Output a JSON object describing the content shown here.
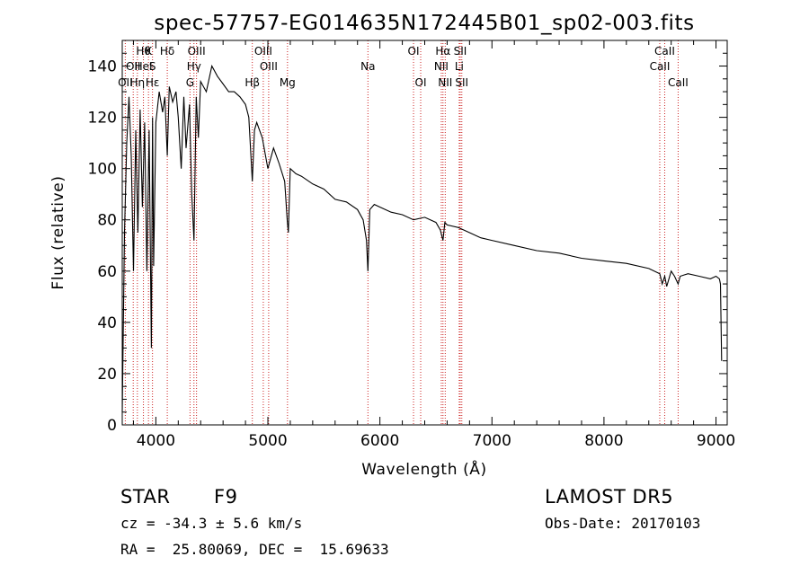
{
  "chart_data": {
    "type": "line",
    "title": "spec-57757-EG014635N172445B01_sp02-003.fits",
    "xlabel": "Wavelength (Å)",
    "ylabel": "Flux (relative)",
    "xlim": [
      3700,
      9100
    ],
    "ylim": [
      0,
      150
    ],
    "xticks": [
      4000,
      5000,
      6000,
      7000,
      8000,
      9000
    ],
    "yticks": [
      0,
      20,
      40,
      60,
      80,
      100,
      120,
      140
    ],
    "grid": false,
    "series": [
      {
        "color": "#000000",
        "x": [
          3700,
          3720,
          3740,
          3760,
          3780,
          3800,
          3820,
          3840,
          3860,
          3880,
          3900,
          3920,
          3940,
          3960,
          3970,
          3980,
          4000,
          4030,
          4060,
          4080,
          4102,
          4120,
          4150,
          4180,
          4200,
          4226,
          4250,
          4270,
          4300,
          4320,
          4340,
          4360,
          4380,
          4400,
          4450,
          4500,
          4550,
          4600,
          4650,
          4700,
          4750,
          4800,
          4830,
          4861,
          4880,
          4900,
          4950,
          5000,
          5050,
          5100,
          5150,
          5172,
          5183,
          5200,
          5250,
          5300,
          5400,
          5500,
          5600,
          5700,
          5800,
          5850,
          5880,
          5893,
          5910,
          5950,
          6000,
          6100,
          6200,
          6300,
          6400,
          6500,
          6540,
          6563,
          6580,
          6600,
          6700,
          6800,
          6900,
          7000,
          7200,
          7400,
          7600,
          7800,
          8000,
          8200,
          8400,
          8498,
          8520,
          8542,
          8560,
          8600,
          8630,
          8662,
          8680,
          8750,
          8850,
          8950,
          9000,
          9030,
          9040,
          9050
        ],
        "y": [
          5,
          75,
          110,
          128,
          105,
          60,
          115,
          75,
          123,
          85,
          118,
          60,
          115,
          30,
          120,
          62,
          118,
          130,
          122,
          128,
          105,
          132,
          126,
          130,
          120,
          100,
          128,
          108,
          125,
          90,
          72,
          128,
          112,
          134,
          130,
          140,
          136,
          133,
          130,
          130,
          128,
          125,
          120,
          95,
          115,
          118,
          112,
          100,
          108,
          102,
          95,
          80,
          75,
          100,
          98,
          97,
          94,
          92,
          88,
          87,
          84,
          80,
          72,
          60,
          84,
          86,
          85,
          83,
          82,
          80,
          81,
          79,
          76,
          72,
          79,
          78,
          77,
          75,
          73,
          72,
          70,
          68,
          67,
          65,
          64,
          63,
          61,
          59,
          55,
          58,
          54,
          60,
          58,
          55,
          58,
          59,
          58,
          57,
          58,
          57,
          55,
          25
        ]
      }
    ],
    "line_labels": [
      {
        "wavelength": 3889,
        "label": "Hθ",
        "row": 1
      },
      {
        "wavelength": 3934,
        "label": "K",
        "row": 1
      },
      {
        "wavelength": 4102,
        "label": "Hδ",
        "row": 1
      },
      {
        "wavelength": 4363,
        "label": "OIII",
        "row": 1
      },
      {
        "wavelength": 4959,
        "label": "OIII",
        "row": 1
      },
      {
        "wavelength": 6300,
        "label": "OI",
        "row": 1
      },
      {
        "wavelength": 6563,
        "label": "Hα",
        "row": 1
      },
      {
        "wavelength": 6717,
        "label": "SII",
        "row": 1
      },
      {
        "wavelength": 8542,
        "label": "CaII",
        "row": 1
      },
      {
        "wavelength": 3798,
        "label": "OII",
        "row": 2
      },
      {
        "wavelength": 3889,
        "label": "HeI",
        "row": 2
      },
      {
        "wavelength": 3970,
        "label": "S",
        "row": 2
      },
      {
        "wavelength": 4340,
        "label": "Hγ",
        "row": 2
      },
      {
        "wavelength": 5007,
        "label": "OIII",
        "row": 2
      },
      {
        "wavelength": 5893,
        "label": "Na",
        "row": 2
      },
      {
        "wavelength": 6548,
        "label": "NII",
        "row": 2
      },
      {
        "wavelength": 6708,
        "label": "Li",
        "row": 2
      },
      {
        "wavelength": 8498,
        "label": "CaII",
        "row": 2
      },
      {
        "wavelength": 3727,
        "label": "OII",
        "row": 3
      },
      {
        "wavelength": 3835,
        "label": "Hη",
        "row": 3
      },
      {
        "wavelength": 3970,
        "label": "Hε",
        "row": 3
      },
      {
        "wavelength": 4305,
        "label": "G",
        "row": 3
      },
      {
        "wavelength": 4861,
        "label": "Hβ",
        "row": 3
      },
      {
        "wavelength": 5175,
        "label": "Mg",
        "row": 3
      },
      {
        "wavelength": 6364,
        "label": "OI",
        "row": 3
      },
      {
        "wavelength": 6583,
        "label": "NII",
        "row": 3
      },
      {
        "wavelength": 6731,
        "label": "SII",
        "row": 3
      },
      {
        "wavelength": 8662,
        "label": "CaII",
        "row": 3
      }
    ],
    "line_marker_wavelengths": [
      3727,
      3798,
      3835,
      3889,
      3934,
      3970,
      4102,
      4305,
      4340,
      4363,
      4861,
      4959,
      5007,
      5175,
      5893,
      6300,
      6364,
      6548,
      6563,
      6583,
      6708,
      6717,
      6731,
      8498,
      8542,
      8662
    ],
    "colors": {
      "axis": "#000000",
      "spectrum": "#000000",
      "line_marker": "#cc2222"
    }
  },
  "footer": {
    "object_class": "STAR",
    "subclass": "F9",
    "survey": "LAMOST DR5",
    "redshift": "cz = -34.3 ± 5.6 km/s",
    "obs_date": "Obs-Date: 20170103",
    "coords": "RA =  25.80069, DEC =  15.69633"
  }
}
